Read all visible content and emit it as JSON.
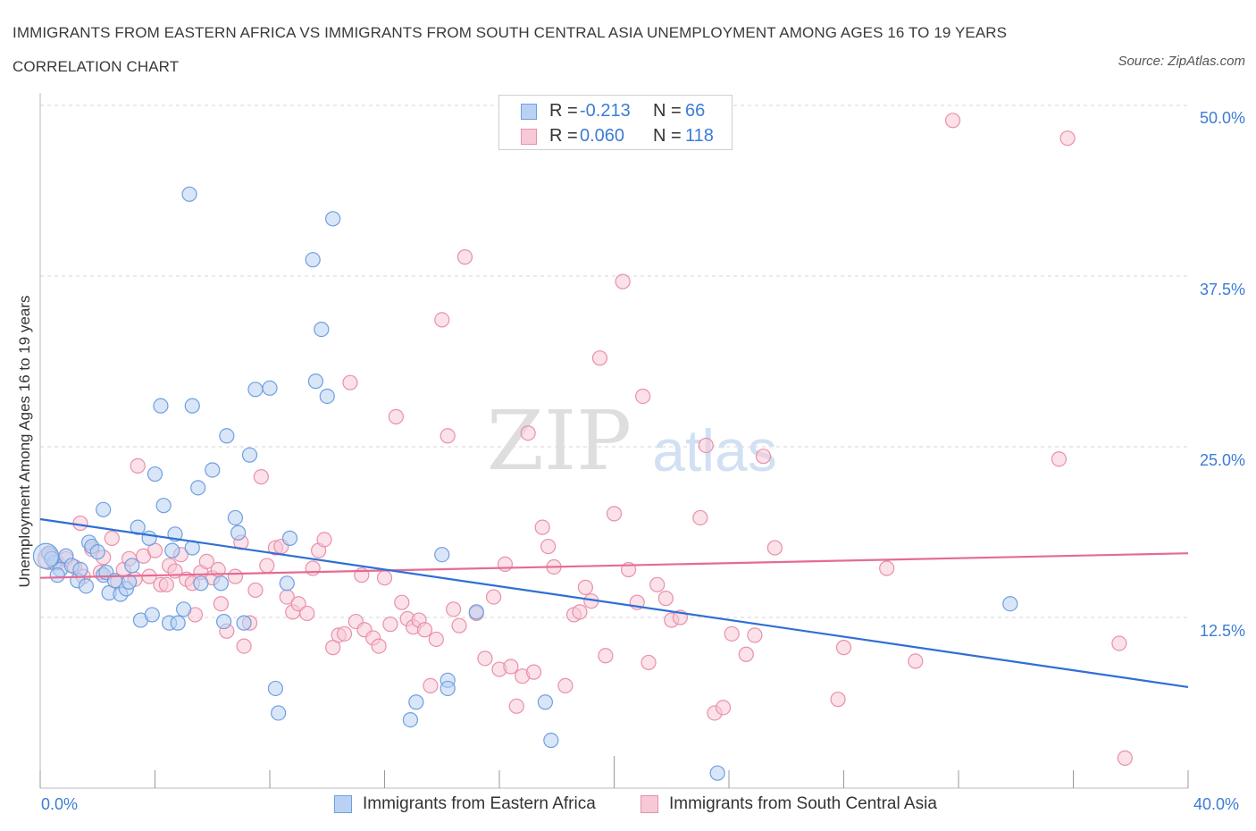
{
  "title": "IMMIGRANTS FROM EASTERN AFRICA VS IMMIGRANTS FROM SOUTH CENTRAL ASIA UNEMPLOYMENT AMONG AGES 16 TO 19 YEARS CORRELATION CHART",
  "source": "Source: ZipAtlas.com",
  "watermark": {
    "zip": "ZIP",
    "atlas": "atlas"
  },
  "legend": {
    "r_label": "R =",
    "n_label": "N =",
    "rows": [
      {
        "r": "-0.213",
        "n": "66"
      },
      {
        "r": "0.060",
        "n": "118"
      }
    ]
  },
  "colors": {
    "blue_fill": "#b9d2f3",
    "blue_stroke": "#6e9fe0",
    "blue_line": "#2f6fd3",
    "pink_fill": "#f7c9d6",
    "pink_stroke": "#e990ab",
    "pink_line": "#e56b95",
    "axis_text": "#3d7cd6",
    "grid": "#d6d6d6"
  },
  "chart_data": {
    "type": "scatter",
    "title": "IMMIGRANTS FROM EASTERN AFRICA VS IMMIGRANTS FROM SOUTH CENTRAL ASIA UNEMPLOYMENT AMONG AGES 16 TO 19 YEARS CORRELATION CHART",
    "xlabel": "",
    "ylabel": "Unemployment Among Ages 16 to 19 years",
    "xlim": [
      0,
      40
    ],
    "ylim": [
      0,
      50
    ],
    "x_tick_labels": [
      "0.0%",
      "40.0%"
    ],
    "y_ticks": [
      12.5,
      25.0,
      37.5,
      50.0
    ],
    "y_tick_labels": [
      "12.5%",
      "25.0%",
      "37.5%",
      "50.0%"
    ],
    "grid": true,
    "legend_position": "top-center",
    "series": [
      {
        "name": "Immigrants from Eastern Africa",
        "color": "blue",
        "R": -0.213,
        "N": 66,
        "trend": {
          "x": [
            0,
            40
          ],
          "y": [
            19.7,
            7.4
          ]
        },
        "points": [
          [
            0.3,
            17.2
          ],
          [
            0.5,
            16.5
          ],
          [
            0.7,
            16.0
          ],
          [
            0.9,
            17.0
          ],
          [
            1.1,
            16.3
          ],
          [
            0.4,
            16.8
          ],
          [
            0.6,
            15.6
          ],
          [
            1.3,
            15.2
          ],
          [
            1.4,
            16.0
          ],
          [
            1.6,
            14.8
          ],
          [
            1.7,
            18.0
          ],
          [
            1.8,
            17.7
          ],
          [
            2.0,
            17.3
          ],
          [
            2.2,
            15.6
          ],
          [
            2.3,
            15.8
          ],
          [
            2.2,
            20.4
          ],
          [
            2.4,
            14.3
          ],
          [
            2.6,
            15.2
          ],
          [
            2.8,
            14.2
          ],
          [
            3.0,
            14.6
          ],
          [
            3.1,
            15.1
          ],
          [
            3.2,
            16.3
          ],
          [
            3.4,
            19.1
          ],
          [
            3.5,
            12.3
          ],
          [
            3.8,
            18.3
          ],
          [
            3.9,
            12.7
          ],
          [
            4.0,
            23.0
          ],
          [
            4.2,
            28.0
          ],
          [
            4.3,
            20.7
          ],
          [
            4.5,
            12.1
          ],
          [
            4.6,
            17.4
          ],
          [
            4.7,
            18.6
          ],
          [
            4.8,
            12.1
          ],
          [
            5.0,
            13.1
          ],
          [
            5.3,
            17.6
          ],
          [
            5.5,
            22.0
          ],
          [
            5.3,
            28.0
          ],
          [
            5.6,
            15.0
          ],
          [
            5.2,
            43.5
          ],
          [
            6.0,
            23.3
          ],
          [
            6.3,
            15.0
          ],
          [
            6.5,
            25.8
          ],
          [
            6.4,
            12.2
          ],
          [
            6.8,
            19.8
          ],
          [
            6.9,
            18.7
          ],
          [
            7.1,
            12.1
          ],
          [
            7.3,
            24.4
          ],
          [
            7.5,
            29.2
          ],
          [
            8.0,
            29.3
          ],
          [
            8.2,
            7.3
          ],
          [
            8.3,
            5.5
          ],
          [
            8.7,
            18.3
          ],
          [
            8.6,
            15.0
          ],
          [
            9.5,
            38.7
          ],
          [
            9.6,
            29.8
          ],
          [
            9.8,
            33.6
          ],
          [
            10.0,
            28.7
          ],
          [
            10.2,
            41.7
          ],
          [
            12.9,
            5.0
          ],
          [
            13.1,
            6.3
          ],
          [
            14.0,
            17.1
          ],
          [
            14.2,
            7.9
          ],
          [
            14.2,
            7.3
          ],
          [
            15.2,
            12.9
          ],
          [
            17.6,
            6.3
          ],
          [
            17.8,
            3.5
          ],
          [
            23.6,
            1.1
          ],
          [
            33.8,
            13.5
          ]
        ]
      },
      {
        "name": "Immigrants from South Central Asia",
        "color": "pink",
        "R": 0.06,
        "N": 118,
        "trend": {
          "x": [
            0,
            40
          ],
          "y": [
            15.4,
            17.2
          ]
        },
        "points": [
          [
            0.4,
            17.0
          ],
          [
            0.6,
            16.5
          ],
          [
            0.9,
            16.8
          ],
          [
            1.2,
            16.2
          ],
          [
            1.5,
            15.5
          ],
          [
            1.4,
            19.4
          ],
          [
            1.8,
            17.5
          ],
          [
            2.1,
            15.8
          ],
          [
            2.2,
            16.9
          ],
          [
            2.5,
            18.3
          ],
          [
            2.7,
            15.1
          ],
          [
            2.9,
            16.0
          ],
          [
            3.1,
            16.8
          ],
          [
            3.3,
            15.3
          ],
          [
            3.4,
            23.6
          ],
          [
            3.6,
            17.0
          ],
          [
            3.8,
            15.5
          ],
          [
            4.0,
            17.4
          ],
          [
            4.2,
            14.9
          ],
          [
            4.4,
            14.9
          ],
          [
            4.5,
            16.3
          ],
          [
            4.7,
            15.9
          ],
          [
            4.9,
            17.1
          ],
          [
            5.1,
            15.3
          ],
          [
            5.3,
            15.0
          ],
          [
            5.4,
            12.7
          ],
          [
            5.6,
            15.8
          ],
          [
            5.8,
            16.6
          ],
          [
            6.0,
            15.4
          ],
          [
            6.2,
            16.0
          ],
          [
            6.3,
            13.5
          ],
          [
            6.5,
            11.5
          ],
          [
            6.8,
            15.5
          ],
          [
            7.0,
            18.0
          ],
          [
            7.1,
            10.4
          ],
          [
            7.3,
            12.1
          ],
          [
            7.5,
            14.5
          ],
          [
            7.7,
            22.8
          ],
          [
            7.9,
            16.3
          ],
          [
            8.2,
            17.6
          ],
          [
            8.4,
            17.7
          ],
          [
            8.6,
            14.0
          ],
          [
            8.8,
            12.9
          ],
          [
            9.0,
            13.5
          ],
          [
            9.3,
            12.8
          ],
          [
            9.5,
            16.1
          ],
          [
            9.7,
            17.4
          ],
          [
            9.9,
            18.2
          ],
          [
            10.2,
            10.3
          ],
          [
            10.4,
            11.2
          ],
          [
            10.6,
            11.3
          ],
          [
            10.8,
            29.7
          ],
          [
            11.0,
            12.2
          ],
          [
            11.2,
            15.6
          ],
          [
            11.3,
            11.6
          ],
          [
            11.6,
            11.0
          ],
          [
            11.8,
            10.4
          ],
          [
            12.0,
            15.4
          ],
          [
            12.2,
            12.0
          ],
          [
            12.4,
            27.2
          ],
          [
            12.6,
            13.6
          ],
          [
            12.8,
            12.4
          ],
          [
            13.0,
            11.8
          ],
          [
            13.2,
            12.3
          ],
          [
            13.4,
            11.6
          ],
          [
            13.6,
            7.5
          ],
          [
            13.8,
            10.9
          ],
          [
            14.0,
            34.3
          ],
          [
            14.2,
            25.8
          ],
          [
            14.4,
            13.1
          ],
          [
            14.6,
            11.9
          ],
          [
            14.8,
            38.9
          ],
          [
            15.2,
            12.8
          ],
          [
            15.5,
            9.5
          ],
          [
            15.8,
            14.0
          ],
          [
            16.0,
            8.7
          ],
          [
            16.2,
            16.4
          ],
          [
            16.4,
            8.9
          ],
          [
            16.6,
            6.0
          ],
          [
            16.8,
            8.2
          ],
          [
            17.0,
            26.0
          ],
          [
            17.2,
            8.5
          ],
          [
            17.5,
            19.1
          ],
          [
            17.7,
            17.7
          ],
          [
            17.9,
            16.2
          ],
          [
            18.3,
            7.5
          ],
          [
            18.6,
            12.7
          ],
          [
            18.8,
            12.9
          ],
          [
            19.0,
            14.7
          ],
          [
            19.2,
            13.7
          ],
          [
            19.5,
            31.5
          ],
          [
            19.7,
            9.7
          ],
          [
            20.0,
            20.1
          ],
          [
            20.3,
            37.1
          ],
          [
            20.5,
            16.0
          ],
          [
            20.8,
            13.6
          ],
          [
            21.0,
            28.7
          ],
          [
            21.2,
            9.2
          ],
          [
            21.5,
            14.9
          ],
          [
            21.8,
            13.9
          ],
          [
            22.0,
            12.3
          ],
          [
            22.3,
            12.5
          ],
          [
            23.0,
            19.8
          ],
          [
            23.2,
            25.1
          ],
          [
            23.5,
            5.5
          ],
          [
            23.8,
            5.9
          ],
          [
            24.1,
            11.3
          ],
          [
            24.6,
            9.8
          ],
          [
            24.9,
            11.2
          ],
          [
            25.2,
            24.3
          ],
          [
            25.6,
            17.6
          ],
          [
            27.8,
            6.5
          ],
          [
            28.0,
            10.3
          ],
          [
            29.5,
            16.1
          ],
          [
            30.5,
            9.3
          ],
          [
            31.8,
            48.9
          ],
          [
            35.5,
            24.1
          ],
          [
            35.8,
            47.6
          ],
          [
            37.6,
            10.6
          ],
          [
            37.8,
            2.2
          ]
        ]
      }
    ]
  }
}
